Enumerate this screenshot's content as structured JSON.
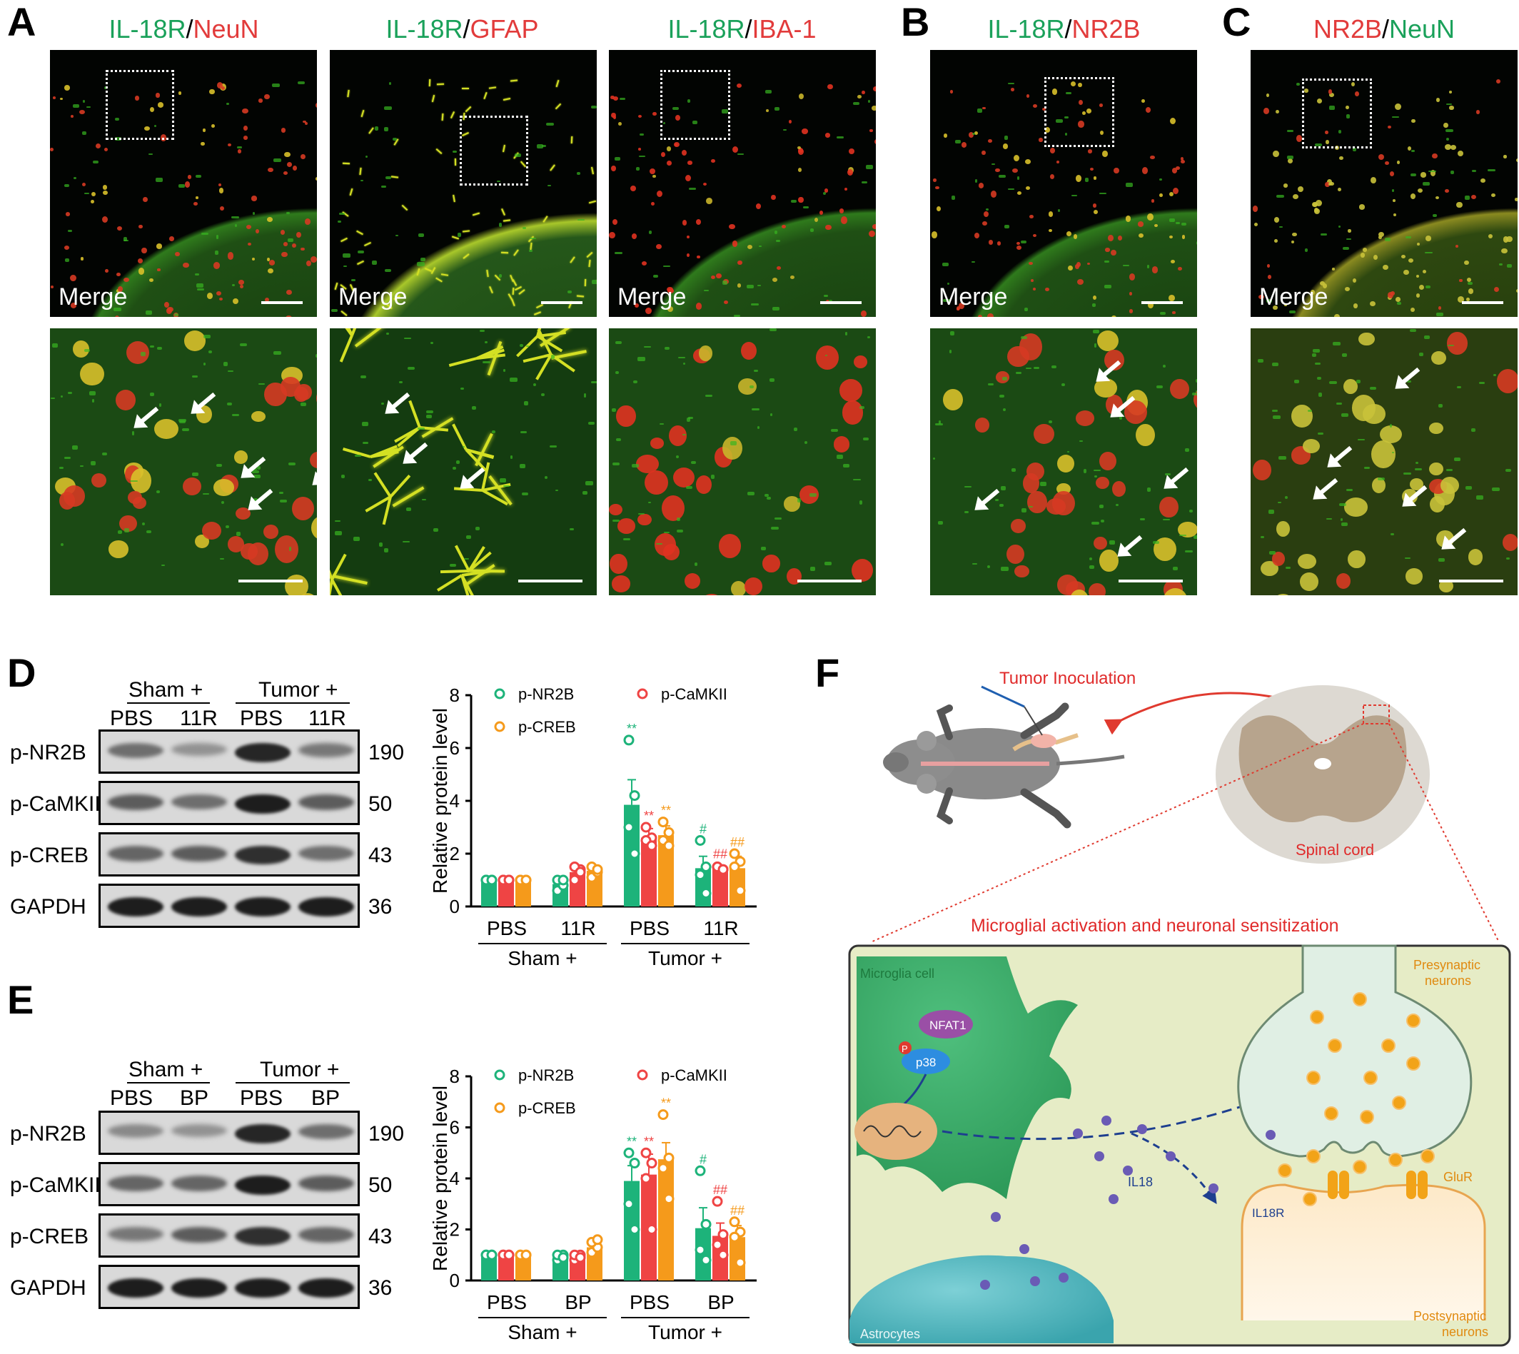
{
  "panels": {
    "A": {
      "label": "A",
      "images": [
        {
          "title_green": "IL-18R",
          "title_sep": "/",
          "title_red": "NeuN",
          "merge": "Merge"
        },
        {
          "title_green": "IL-18R",
          "title_sep": "/",
          "title_red": "GFAP",
          "merge": "Merge"
        },
        {
          "title_green": "IL-18R",
          "title_sep": "/",
          "title_red": "IBA-1",
          "merge": "Merge"
        }
      ]
    },
    "B": {
      "label": "B",
      "title_green": "IL-18R",
      "title_sep": "/",
      "title_red": "NR2B",
      "merge": "Merge"
    },
    "C": {
      "label": "C",
      "title_red": "NR2B",
      "title_sep": "/",
      "title_green": "NeuN",
      "merge": "Merge"
    },
    "D": {
      "label": "D",
      "group1": "Sham +",
      "group2": "Tumor +",
      "lanes": [
        "PBS",
        "11R",
        "PBS",
        "11R"
      ],
      "rows": [
        {
          "name": "p-NR2B",
          "kda": "190"
        },
        {
          "name": "p-CaMKII",
          "kda": "50"
        },
        {
          "name": "p-CREB",
          "kda": "43"
        },
        {
          "name": "GAPDH",
          "kda": "36"
        }
      ]
    },
    "E": {
      "label": "E",
      "group1": "Sham +",
      "group2": "Tumor +",
      "lanes": [
        "PBS",
        "BP",
        "PBS",
        "BP"
      ],
      "rows": [
        {
          "name": "p-NR2B",
          "kda": "190"
        },
        {
          "name": "p-CaMKII",
          "kda": "50"
        },
        {
          "name": "p-CREB",
          "kda": "43"
        },
        {
          "name": "GAPDH",
          "kda": "36"
        }
      ]
    },
    "F": {
      "label": "F",
      "tumor": "Tumor Inoculation",
      "spinal": "Spinal cord",
      "title": "Microglial activation and neuronal sensitization",
      "microglia": "Microglia cell",
      "nfat": "NFAT1",
      "p": "P",
      "p38": "p38",
      "il18": "IL18",
      "il18r": "IL18R",
      "glur": "GluR",
      "pre1": "Presynaptic",
      "pre2": "neurons",
      "post1": "Postsynaptic",
      "post2": "neurons",
      "astro": "Astrocytes"
    }
  },
  "colors": {
    "nr2b": "#1db37a",
    "camkii": "#ef4444",
    "creb": "#f59a1b"
  },
  "chart_data": [
    {
      "type": "bar",
      "ylabel": "Relative protein level",
      "ylim": [
        0,
        8
      ],
      "yticks": [
        0,
        2,
        4,
        6,
        8
      ],
      "categories": [
        "PBS",
        "11R",
        "PBS",
        "11R"
      ],
      "groups": [
        "Sham +",
        "Tumor +"
      ],
      "series": [
        {
          "name": "p-NR2B",
          "values": [
            1.0,
            0.85,
            3.85,
            1.45
          ],
          "errors": [
            0.02,
            0.15,
            0.95,
            0.45
          ],
          "sig": [
            "",
            "",
            "**",
            "#"
          ],
          "points": [
            [
              1,
              1,
              1,
              1
            ],
            [
              0.6,
              0.8,
              1.0,
              1.0
            ],
            [
              6.3,
              4.2,
              3.0,
              2.0
            ],
            [
              2.5,
              1.5,
              1.2,
              0.5
            ]
          ]
        },
        {
          "name": "p-CaMKII",
          "values": [
            1.0,
            1.3,
            2.6,
            1.45
          ],
          "errors": [
            0.02,
            0.15,
            0.35,
            0.1
          ],
          "sig": [
            "",
            "",
            "**",
            "##"
          ],
          "points": [
            [
              1,
              1,
              1,
              1
            ],
            [
              1.0,
              1.4,
              1.5,
              1.3
            ],
            [
              3.0,
              2.6,
              2.5,
              2.3
            ],
            [
              1.5,
              1.4,
              1.5,
              1.4
            ]
          ]
        },
        {
          "name": "p-CREB",
          "values": [
            1.0,
            1.35,
            2.7,
            1.45
          ],
          "errors": [
            0.02,
            0.15,
            0.35,
            0.45
          ],
          "sig": [
            "",
            "",
            "**",
            "##"
          ],
          "points": [
            [
              1,
              1,
              1,
              1
            ],
            [
              1.1,
              1.3,
              1.5,
              1.4
            ],
            [
              3.2,
              2.8,
              2.5,
              2.3
            ],
            [
              2.0,
              1.7,
              1.5,
              0.6
            ]
          ]
        }
      ]
    },
    {
      "type": "bar",
      "ylabel": "Relative protein level",
      "ylim": [
        0,
        8
      ],
      "yticks": [
        0,
        2,
        4,
        6,
        8
      ],
      "categories": [
        "PBS",
        "BP",
        "PBS",
        "BP"
      ],
      "groups": [
        "Sham +",
        "Tumor +"
      ],
      "series": [
        {
          "name": "p-NR2B",
          "values": [
            1.0,
            0.9,
            3.9,
            2.05
          ],
          "errors": [
            0.02,
            0.1,
            0.6,
            0.8
          ],
          "sig": [
            "",
            "",
            "**",
            "#"
          ],
          "points": [
            [
              1,
              1,
              1,
              1
            ],
            [
              0.8,
              1.0,
              1.0,
              0.9
            ],
            [
              5.0,
              4.6,
              3.0,
              2.0
            ],
            [
              4.3,
              2.2,
              1.2,
              0.8
            ]
          ]
        },
        {
          "name": "p-CaMKII",
          "values": [
            1.0,
            0.9,
            4.15,
            1.75
          ],
          "errors": [
            0.02,
            0.1,
            0.8,
            0.5
          ],
          "sig": [
            "",
            "",
            "**",
            "##"
          ],
          "points": [
            [
              1,
              1,
              1,
              1
            ],
            [
              0.8,
              1.0,
              1.0,
              0.9
            ],
            [
              5.0,
              4.6,
              4.0,
              2.0
            ],
            [
              3.1,
              1.8,
              1.4,
              1.0
            ]
          ]
        },
        {
          "name": "p-CREB",
          "values": [
            1.0,
            1.3,
            4.75,
            1.7
          ],
          "errors": [
            0.02,
            0.15,
            0.65,
            0.45
          ],
          "sig": [
            "",
            "",
            "**",
            "##"
          ],
          "points": [
            [
              1,
              1,
              1,
              1
            ],
            [
              1.1,
              1.3,
              1.5,
              1.6
            ],
            [
              6.5,
              4.8,
              4.4,
              3.2
            ],
            [
              2.3,
              1.9,
              1.7,
              0.7
            ]
          ]
        }
      ]
    }
  ]
}
